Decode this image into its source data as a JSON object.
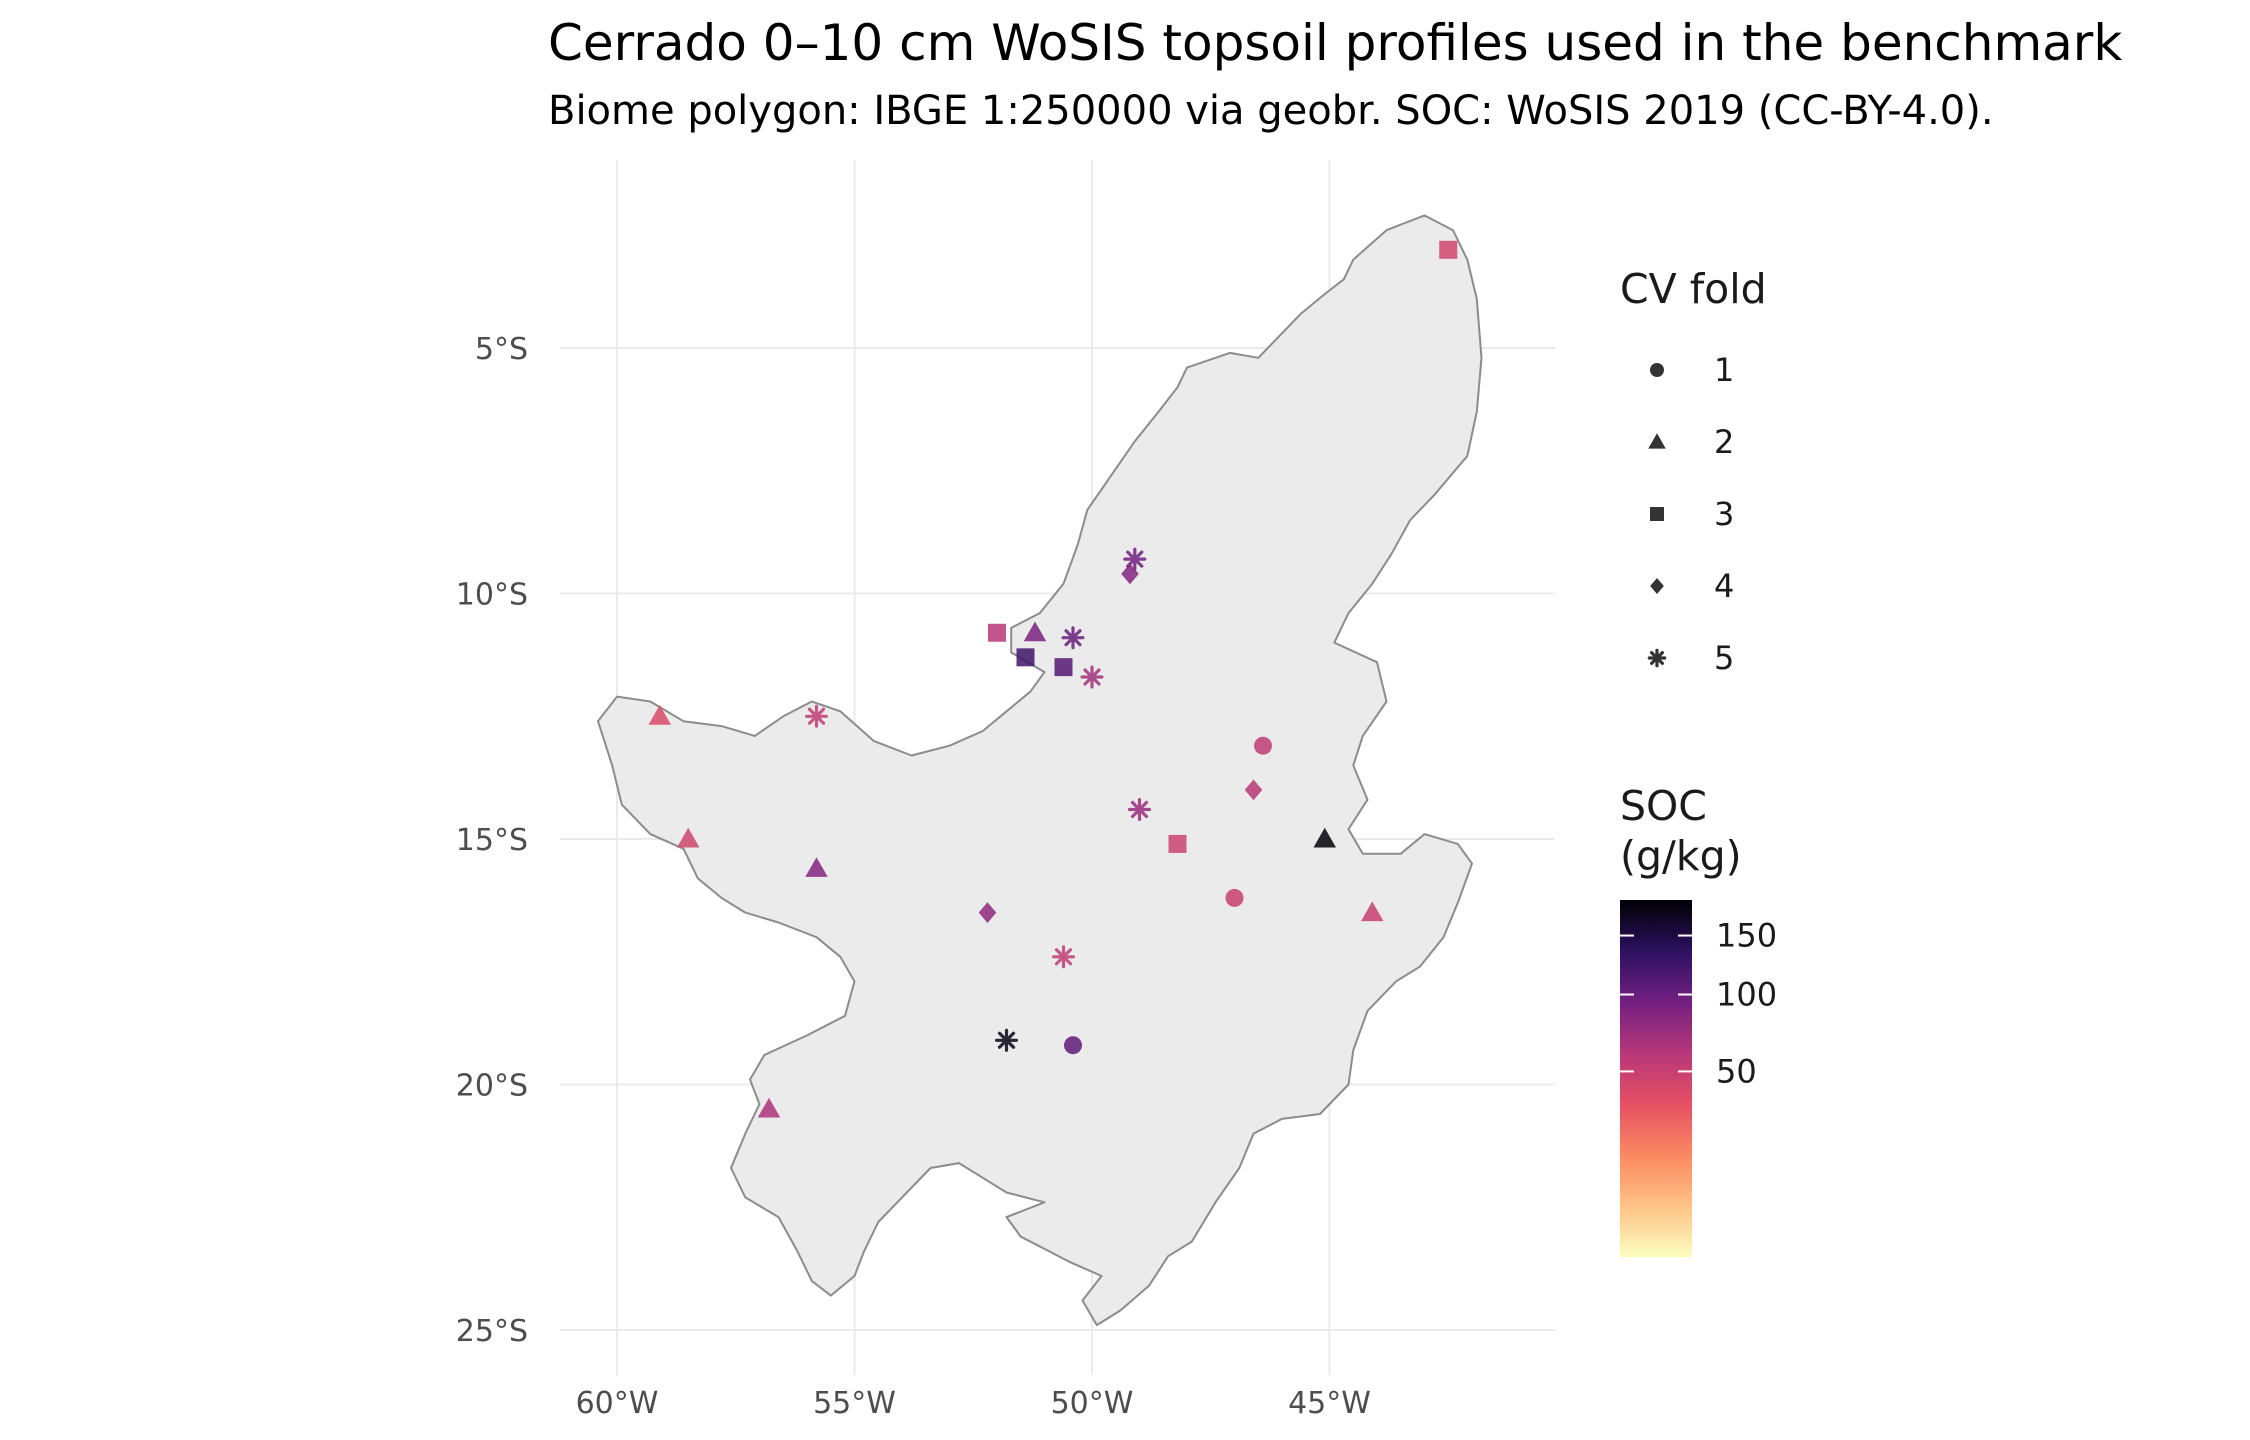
{
  "title": "Cerrado 0–10 cm WoSIS topsoil profiles used in the benchmark",
  "subtitle": "Biome polygon: IBGE 1:250000 via geobr. SOC: WoSIS 2019 (CC-BY-4.0).",
  "axes": {
    "x_ticks": [
      {
        "value": -60,
        "label": "60°W"
      },
      {
        "value": -55,
        "label": "55°W"
      },
      {
        "value": -50,
        "label": "50°W"
      },
      {
        "value": -45,
        "label": "45°W"
      }
    ],
    "y_ticks": [
      {
        "value": -5,
        "label": "5°S"
      },
      {
        "value": -10,
        "label": "10°S"
      },
      {
        "value": -15,
        "label": "15°S"
      },
      {
        "value": -20,
        "label": "20°S"
      },
      {
        "value": -25,
        "label": "25°S"
      }
    ],
    "lon_range": [
      -61.5,
      -41.5
    ],
    "lat_range": [
      -25.6,
      -1.0
    ],
    "grid": true
  },
  "legend_fold": {
    "title": "CV fold",
    "items": [
      {
        "label": "1",
        "shape": "circle"
      },
      {
        "label": "2",
        "shape": "triangle"
      },
      {
        "label": "3",
        "shape": "square"
      },
      {
        "label": "4",
        "shape": "diamond"
      },
      {
        "label": "5",
        "shape": "asterisk"
      }
    ]
  },
  "legend_soc": {
    "title_line1": "SOC",
    "title_line2": "(g/kg)",
    "ticks": [
      {
        "value": 150,
        "label": "150"
      },
      {
        "value": 100,
        "label": "100"
      },
      {
        "value": 50,
        "label": "50"
      }
    ],
    "scale": "sqrt",
    "range": [
      0,
      185
    ],
    "palette": "magma"
  },
  "colors": {
    "polygon_fill": "#ebebeb",
    "polygon_stroke": "#8c8c8c",
    "grid": "#ebebeb",
    "magma_stops": [
      "#fcfdbf",
      "#fec287",
      "#fb8861",
      "#e55064",
      "#b73779",
      "#721f81",
      "#2c115f",
      "#000004"
    ]
  },
  "chart_data": {
    "type": "scatter",
    "title": "Cerrado 0–10 cm WoSIS topsoil profiles used in the benchmark",
    "xlabel": "",
    "ylabel": "",
    "x_range": [
      -61.5,
      -41.5
    ],
    "y_range": [
      -25.6,
      -1.0
    ],
    "color_variable": "SOC (g/kg)",
    "shape_variable": "CV fold",
    "biome_outline_lonlat": [
      [
        -44.5,
        -3.2
      ],
      [
        -43.8,
        -2.6
      ],
      [
        -43.0,
        -2.3
      ],
      [
        -42.4,
        -2.6
      ],
      [
        -42.1,
        -3.2
      ],
      [
        -41.9,
        -4.0
      ],
      [
        -41.8,
        -5.2
      ],
      [
        -41.9,
        -6.3
      ],
      [
        -42.1,
        -7.2
      ],
      [
        -42.8,
        -8.0
      ],
      [
        -43.3,
        -8.5
      ],
      [
        -43.7,
        -9.2
      ],
      [
        -44.1,
        -9.8
      ],
      [
        -44.6,
        -10.4
      ],
      [
        -44.9,
        -11.0
      ],
      [
        -44.0,
        -11.4
      ],
      [
        -43.8,
        -12.2
      ],
      [
        -44.3,
        -12.9
      ],
      [
        -44.5,
        -13.5
      ],
      [
        -44.2,
        -14.2
      ],
      [
        -44.6,
        -14.8
      ],
      [
        -44.3,
        -15.3
      ],
      [
        -43.5,
        -15.3
      ],
      [
        -43.0,
        -14.9
      ],
      [
        -42.3,
        -15.1
      ],
      [
        -42.0,
        -15.5
      ],
      [
        -42.3,
        -16.3
      ],
      [
        -42.6,
        -17.0
      ],
      [
        -43.1,
        -17.6
      ],
      [
        -43.6,
        -17.9
      ],
      [
        -44.2,
        -18.5
      ],
      [
        -44.5,
        -19.3
      ],
      [
        -44.6,
        -20.0
      ],
      [
        -45.2,
        -20.6
      ],
      [
        -46.0,
        -20.7
      ],
      [
        -46.6,
        -21.0
      ],
      [
        -46.9,
        -21.7
      ],
      [
        -47.4,
        -22.4
      ],
      [
        -47.9,
        -23.2
      ],
      [
        -48.4,
        -23.5
      ],
      [
        -48.8,
        -24.1
      ],
      [
        -49.4,
        -24.6
      ],
      [
        -49.9,
        -24.9
      ],
      [
        -50.2,
        -24.4
      ],
      [
        -49.8,
        -23.9
      ],
      [
        -50.5,
        -23.6
      ],
      [
        -50.9,
        -23.4
      ],
      [
        -51.5,
        -23.1
      ],
      [
        -51.8,
        -22.7
      ],
      [
        -51.0,
        -22.4
      ],
      [
        -51.8,
        -22.2
      ],
      [
        -52.3,
        -21.9
      ],
      [
        -52.8,
        -21.6
      ],
      [
        -53.4,
        -21.7
      ],
      [
        -53.9,
        -22.2
      ],
      [
        -54.5,
        -22.8
      ],
      [
        -54.8,
        -23.4
      ],
      [
        -55.0,
        -23.9
      ],
      [
        -55.5,
        -24.3
      ],
      [
        -55.9,
        -24.0
      ],
      [
        -56.2,
        -23.4
      ],
      [
        -56.6,
        -22.7
      ],
      [
        -57.3,
        -22.3
      ],
      [
        -57.6,
        -21.7
      ],
      [
        -57.3,
        -21.0
      ],
      [
        -57.0,
        -20.4
      ],
      [
        -57.2,
        -19.9
      ],
      [
        -56.9,
        -19.4
      ],
      [
        -56.0,
        -19.0
      ],
      [
        -55.2,
        -18.6
      ],
      [
        -55.0,
        -17.9
      ],
      [
        -55.3,
        -17.4
      ],
      [
        -55.8,
        -17.0
      ],
      [
        -56.6,
        -16.7
      ],
      [
        -57.3,
        -16.5
      ],
      [
        -57.8,
        -16.2
      ],
      [
        -58.3,
        -15.8
      ],
      [
        -58.6,
        -15.2
      ],
      [
        -59.3,
        -14.9
      ],
      [
        -59.9,
        -14.3
      ],
      [
        -60.1,
        -13.5
      ],
      [
        -60.4,
        -12.6
      ],
      [
        -60.0,
        -12.1
      ],
      [
        -59.3,
        -12.2
      ],
      [
        -58.6,
        -12.6
      ],
      [
        -57.8,
        -12.7
      ],
      [
        -57.1,
        -12.9
      ],
      [
        -56.5,
        -12.5
      ],
      [
        -55.9,
        -12.2
      ],
      [
        -55.3,
        -12.4
      ],
      [
        -54.6,
        -13.0
      ],
      [
        -53.8,
        -13.3
      ],
      [
        -53.0,
        -13.1
      ],
      [
        -52.3,
        -12.8
      ],
      [
        -51.8,
        -12.4
      ],
      [
        -51.3,
        -12.0
      ],
      [
        -51.0,
        -11.6
      ],
      [
        -51.7,
        -11.2
      ],
      [
        -51.7,
        -10.7
      ],
      [
        -51.1,
        -10.4
      ],
      [
        -50.6,
        -9.8
      ],
      [
        -50.3,
        -9.0
      ],
      [
        -50.1,
        -8.3
      ],
      [
        -49.6,
        -7.6
      ],
      [
        -49.1,
        -6.9
      ],
      [
        -48.6,
        -6.3
      ],
      [
        -48.2,
        -5.8
      ],
      [
        -48.0,
        -5.4
      ],
      [
        -47.1,
        -5.1
      ],
      [
        -46.5,
        -5.2
      ],
      [
        -46.1,
        -4.8
      ],
      [
        -45.6,
        -4.3
      ],
      [
        -45.1,
        -3.9
      ],
      [
        -44.7,
        -3.6
      ],
      [
        -44.5,
        -3.2
      ]
    ],
    "points": [
      {
        "lon": -45.1,
        "lat": -15.0,
        "soc": 182,
        "fold": 2
      },
      {
        "lon": -51.8,
        "lat": -19.1,
        "soc": 175,
        "fold": 5
      },
      {
        "lon": -51.4,
        "lat": -11.3,
        "soc": 125,
        "fold": 3
      },
      {
        "lon": -50.6,
        "lat": -11.5,
        "soc": 110,
        "fold": 3
      },
      {
        "lon": -50.4,
        "lat": -10.9,
        "soc": 100,
        "fold": 5
      },
      {
        "lon": -49.1,
        "lat": -9.3,
        "soc": 95,
        "fold": 5
      },
      {
        "lon": -50.4,
        "lat": -19.2,
        "soc": 105,
        "fold": 1
      },
      {
        "lon": -51.2,
        "lat": -10.8,
        "soc": 90,
        "fold": 2
      },
      {
        "lon": -49.2,
        "lat": -9.6,
        "soc": 85,
        "fold": 4
      },
      {
        "lon": -55.8,
        "lat": -15.6,
        "soc": 85,
        "fold": 2
      },
      {
        "lon": -52.2,
        "lat": -16.5,
        "soc": 80,
        "fold": 4
      },
      {
        "lon": -49.0,
        "lat": -14.4,
        "soc": 75,
        "fold": 5
      },
      {
        "lon": -50.0,
        "lat": -11.7,
        "soc": 70,
        "fold": 5
      },
      {
        "lon": -52.0,
        "lat": -10.8,
        "soc": 60,
        "fold": 3
      },
      {
        "lon": -56.8,
        "lat": -20.5,
        "soc": 65,
        "fold": 2
      },
      {
        "lon": -46.6,
        "lat": -14.0,
        "soc": 60,
        "fold": 4
      },
      {
        "lon": -46.4,
        "lat": -13.1,
        "soc": 55,
        "fold": 1
      },
      {
        "lon": -55.8,
        "lat": -12.5,
        "soc": 55,
        "fold": 5
      },
      {
        "lon": -44.1,
        "lat": -16.5,
        "soc": 50,
        "fold": 2
      },
      {
        "lon": -50.6,
        "lat": -17.4,
        "soc": 55,
        "fold": 5
      },
      {
        "lon": -58.5,
        "lat": -15.0,
        "soc": 45,
        "fold": 2
      },
      {
        "lon": -59.1,
        "lat": -12.5,
        "soc": 40,
        "fold": 2
      },
      {
        "lon": -42.5,
        "lat": -3.0,
        "soc": 45,
        "fold": 3
      },
      {
        "lon": -48.2,
        "lat": -15.1,
        "soc": 48,
        "fold": 3
      },
      {
        "lon": -47.0,
        "lat": -16.2,
        "soc": 50,
        "fold": 1
      }
    ]
  }
}
